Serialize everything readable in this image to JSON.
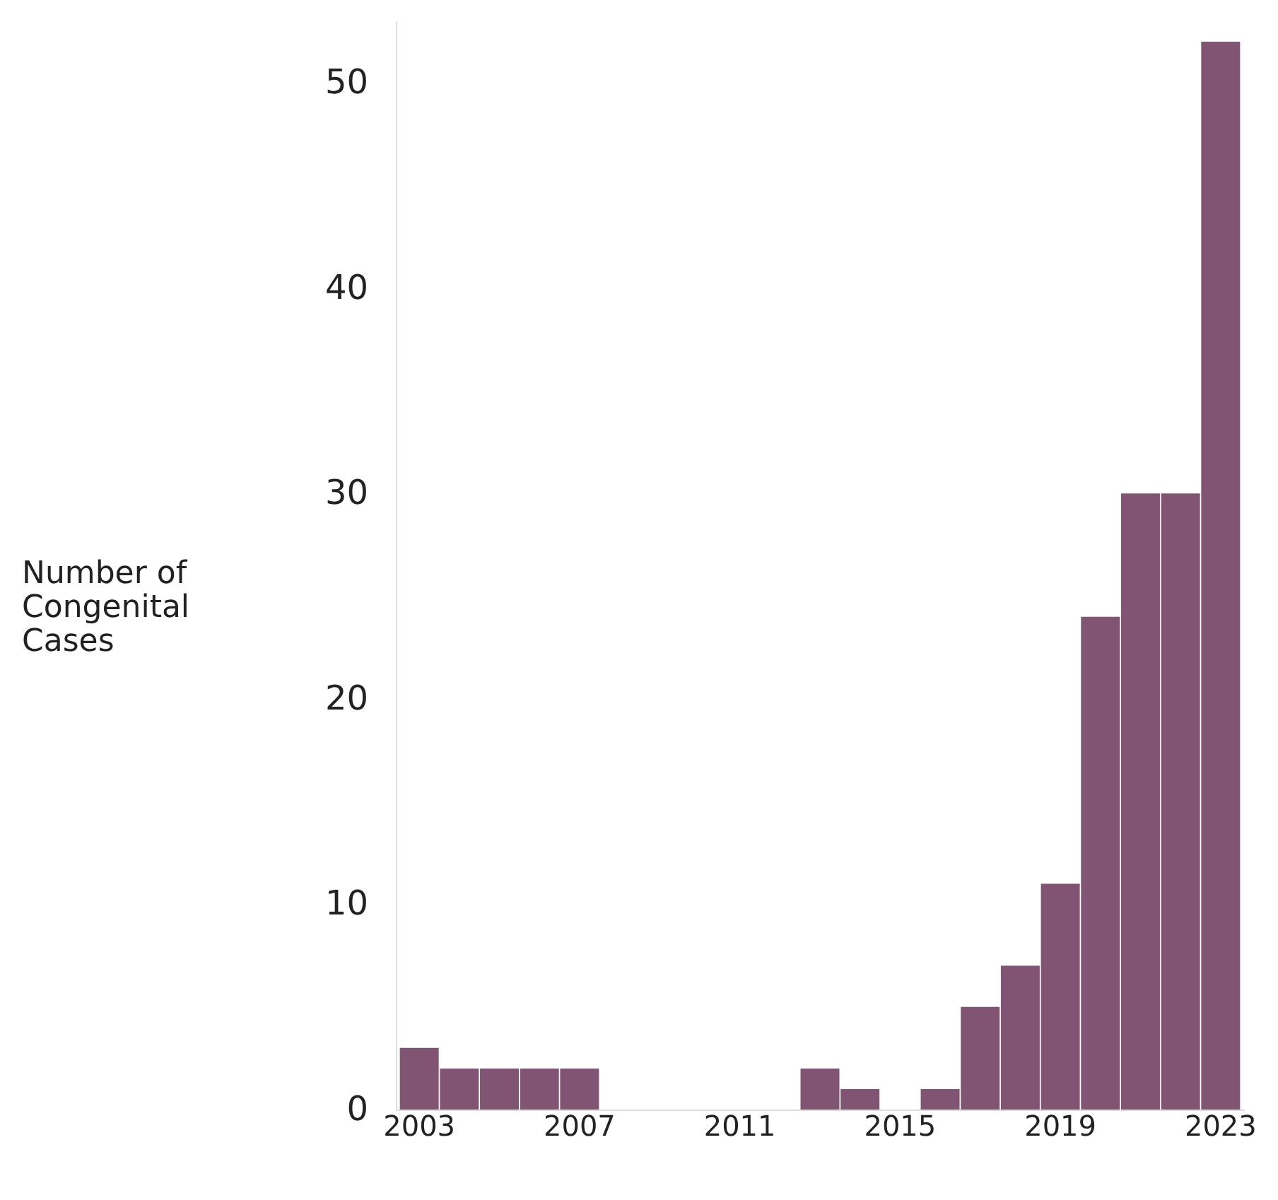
{
  "chart_data": {
    "type": "bar",
    "ylabel": "Number of Congenital Cases",
    "categories": [
      "2003",
      null,
      null,
      null,
      "2007",
      null,
      null,
      null,
      "2011",
      null,
      null,
      null,
      "2015",
      null,
      null,
      null,
      "2019",
      null,
      null,
      null,
      "2023"
    ],
    "values": [
      3,
      2,
      2,
      2,
      2,
      0,
      0,
      0,
      0,
      0,
      2,
      1,
      0,
      1,
      5,
      7,
      11,
      24,
      30,
      30,
      52
    ],
    "color": "#825474",
    "ylim": [
      0,
      53
    ],
    "yticks": [
      0,
      10,
      20,
      30,
      40,
      50
    ],
    "grid": false
  }
}
